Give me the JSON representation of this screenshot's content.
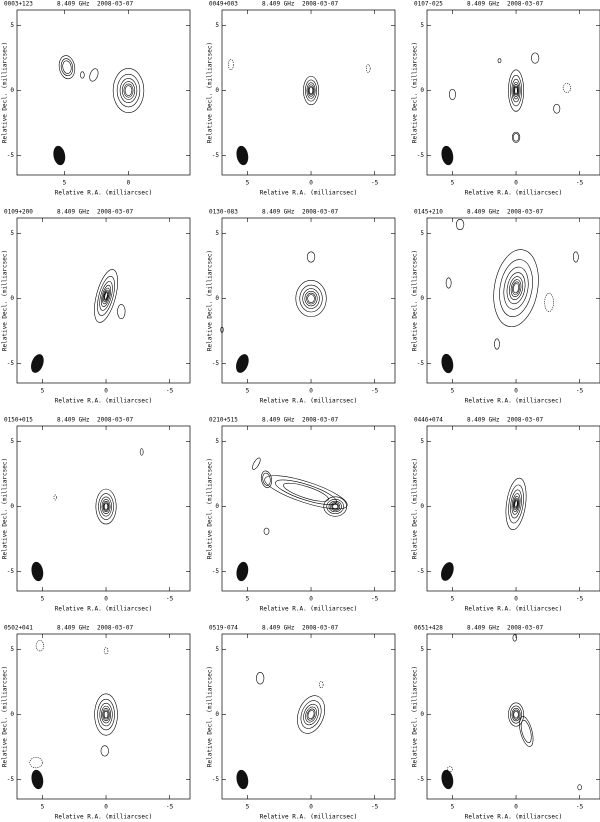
{
  "chart_data": [
    {
      "type": "contour",
      "title": "0003+123",
      "subtitle": "8.409 GHz",
      "date": "2008-03-07",
      "xlabel": "Relative R.A. (milliarcsec)",
      "ylabel": "Relative Decl. (milliarcsec)",
      "xlim": [
        8.7,
        -4.8
      ],
      "ylim": [
        -6.5,
        6.2
      ],
      "xticks": [
        5,
        0
      ],
      "yticks": [
        -5,
        0,
        5
      ]
    },
    {
      "type": "contour",
      "title": "0049+003",
      "subtitle": "8.409 GHz",
      "date": "2008-03-07",
      "xlabel": "Relative R.A. (milliarcsec)",
      "ylabel": "Relative Decl. (milliarcsec)",
      "xlim": [
        7,
        -6.6
      ],
      "ylim": [
        -6.5,
        6.2
      ],
      "xticks": [
        5,
        0,
        -5
      ],
      "yticks": [
        -5,
        0,
        5
      ]
    },
    {
      "type": "contour",
      "title": "0107-025",
      "subtitle": "8.409 GHz",
      "date": "2008-03-07",
      "xlabel": "Relative R.A. (milliarcsec)",
      "ylabel": "Relative Decl. (milliarcsec)",
      "xlim": [
        7,
        -6.6
      ],
      "ylim": [
        -6.5,
        6.2
      ],
      "xticks": [
        5,
        0,
        -5
      ],
      "yticks": [
        -5,
        0,
        5
      ]
    },
    {
      "type": "contour",
      "title": "0109+200",
      "subtitle": "8.409 GHz",
      "date": "2008-03-07",
      "xlabel": "Relative R.A. (milliarcsec)",
      "ylabel": "Relative Decl. (milliarcsec)",
      "xlim": [
        7,
        -6.6
      ],
      "ylim": [
        -6.5,
        6.2
      ],
      "xticks": [
        5,
        0,
        -5
      ],
      "yticks": [
        -5,
        0,
        5
      ]
    },
    {
      "type": "contour",
      "title": "0130-083",
      "subtitle": "8.409 GHz",
      "date": "2008-03-07",
      "xlabel": "Relative R.A. (milliarcsec)",
      "ylabel": "Relative Decl. (milliarcsec)",
      "xlim": [
        7,
        -6.6
      ],
      "ylim": [
        -6.5,
        6.2
      ],
      "xticks": [
        5,
        0,
        -5
      ],
      "yticks": [
        -5,
        0,
        5
      ]
    },
    {
      "type": "contour",
      "title": "0145+210",
      "subtitle": "8.409 GHz",
      "date": "2008-03-07",
      "xlabel": "Relative R.A. (milliarcsec)",
      "ylabel": "Relative Decl. (milliarcsec)",
      "xlim": [
        7,
        -6.6
      ],
      "ylim": [
        -6.5,
        6.2
      ],
      "xticks": [
        5,
        0,
        -5
      ],
      "yticks": [
        -5,
        0,
        5
      ]
    },
    {
      "type": "contour",
      "title": "0150+015",
      "subtitle": "8.409 GHz",
      "date": "2008-03-07",
      "xlabel": "Relative R.A. (milliarcsec)",
      "ylabel": "Relative Decl. (milliarcsec)",
      "xlim": [
        7,
        -6.6
      ],
      "ylim": [
        -6.5,
        6.2
      ],
      "xticks": [
        5,
        0,
        -5
      ],
      "yticks": [
        -5,
        0,
        5
      ]
    },
    {
      "type": "contour",
      "title": "0210+515",
      "subtitle": "8.409 GHz",
      "date": "2008-03-07",
      "xlabel": "Relative R.A. (milliarcsec)",
      "ylabel": "Relative Decl. (milliarcsec)",
      "xlim": [
        7,
        -6.6
      ],
      "ylim": [
        -6.5,
        6.2
      ],
      "xticks": [
        5,
        0,
        -5
      ],
      "yticks": [
        -5,
        0,
        5
      ]
    },
    {
      "type": "contour",
      "title": "0446+074",
      "subtitle": "8.409 GHz",
      "date": "2008-03-07",
      "xlabel": "Relative R.A. (milliarcsec)",
      "ylabel": "Relative Decl. (milliarcsec)",
      "xlim": [
        7,
        -6.6
      ],
      "ylim": [
        -6.5,
        6.2
      ],
      "xticks": [
        5,
        0,
        -5
      ],
      "yticks": [
        -5,
        0,
        5
      ]
    },
    {
      "type": "contour",
      "title": "0502+041",
      "subtitle": "8.409 GHz",
      "date": "2008-03-07",
      "xlabel": "Relative R.A. (milliarcsec)",
      "ylabel": "Relative Decl. (milliarcsec)",
      "xlim": [
        7,
        -6.6
      ],
      "ylim": [
        -6.5,
        6.2
      ],
      "xticks": [
        5,
        0,
        -5
      ],
      "yticks": [
        -5,
        0,
        5
      ]
    },
    {
      "type": "contour",
      "title": "0519-074",
      "subtitle": "8.409 GHz",
      "date": "2008-03-07",
      "xlabel": "Relative R.A. (milliarcsec)",
      "ylabel": "Relative Decl. (milliarcsec)",
      "xlim": [
        7,
        -6.6
      ],
      "ylim": [
        -6.5,
        6.2
      ],
      "xticks": [
        5,
        0,
        -5
      ],
      "yticks": [
        -5,
        0,
        5
      ]
    },
    {
      "type": "contour",
      "title": "0651+428",
      "subtitle": "8.409 GHz",
      "date": "2008-03-07",
      "xlabel": "Relative R.A. (milliarcsec)",
      "ylabel": "Relative Decl. (milliarcsec)",
      "xlim": [
        7,
        -6.6
      ],
      "ylim": [
        -6.5,
        6.2
      ],
      "xticks": [
        5,
        0,
        -5
      ],
      "yticks": [
        -5,
        0,
        5
      ]
    }
  ]
}
